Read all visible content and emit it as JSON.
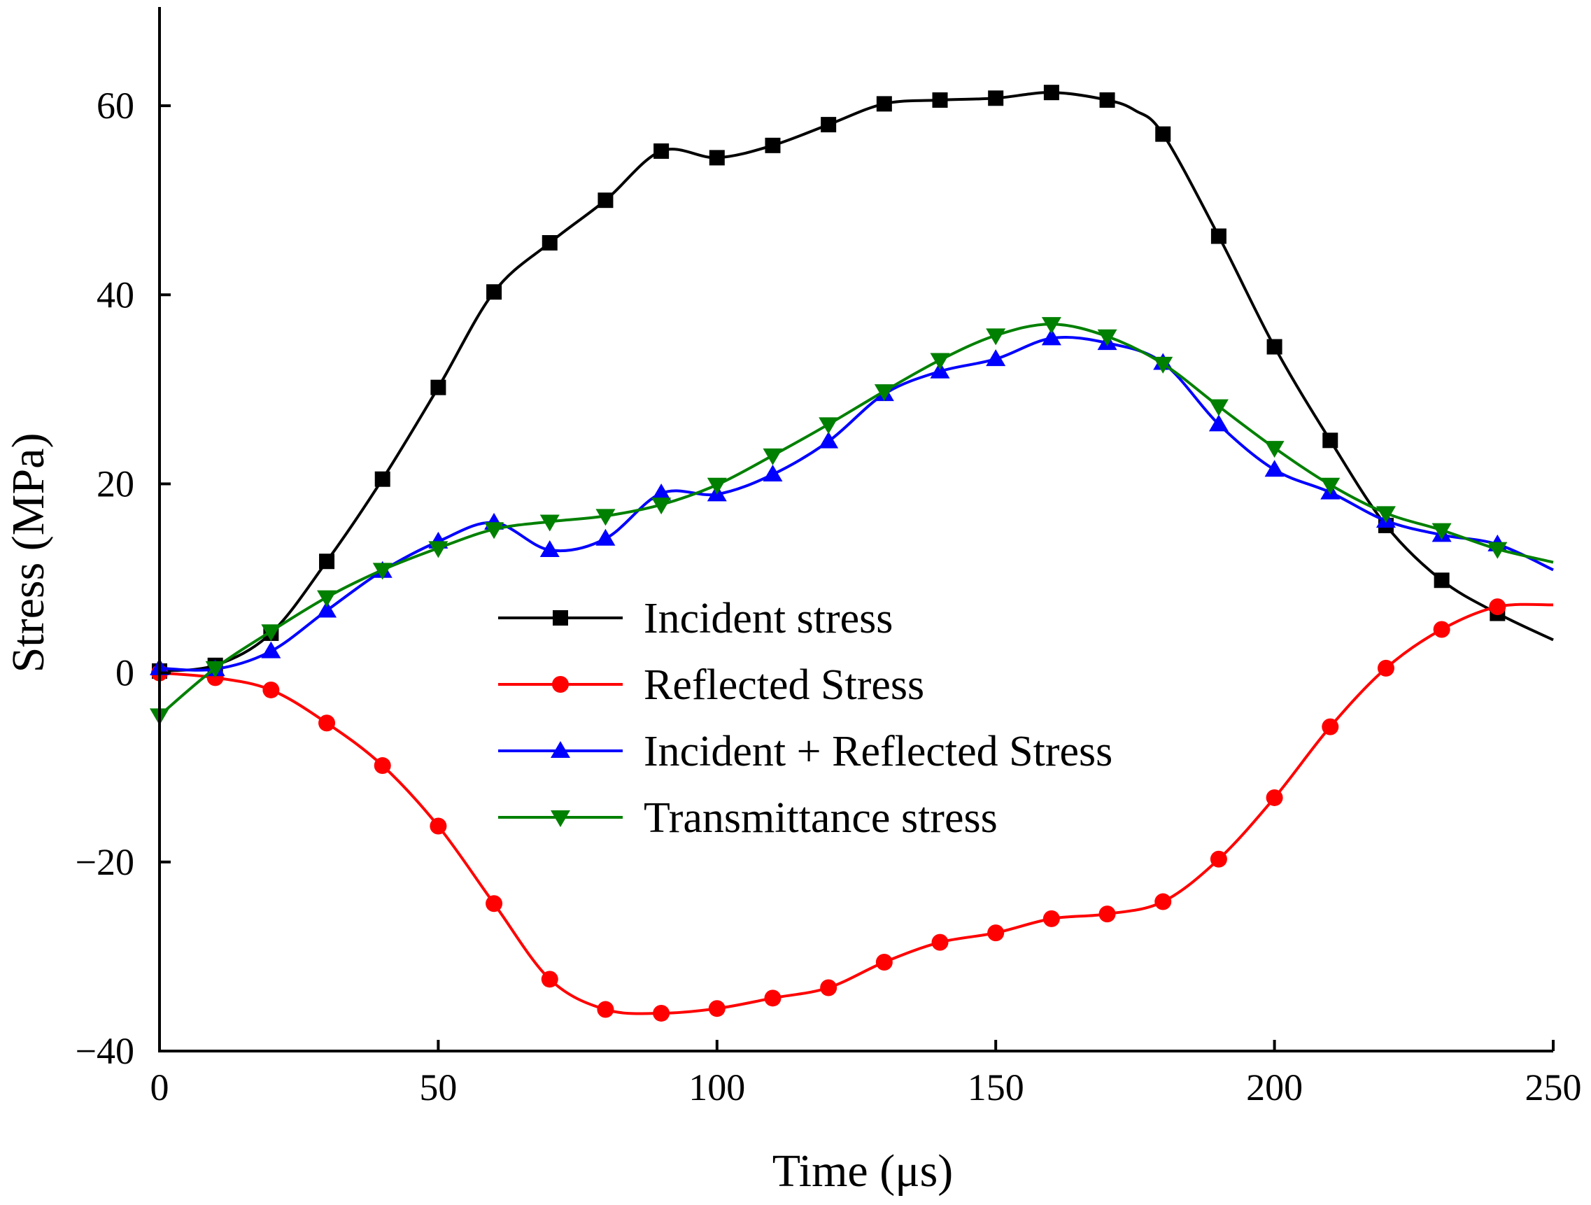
{
  "chart_data": {
    "type": "line",
    "title": "",
    "xlabel": "Time (μs)",
    "ylabel": "Stress (MPa)",
    "xlim": [
      0,
      250
    ],
    "ylim": [
      -40,
      70
    ],
    "xticks": [
      0,
      50,
      100,
      150,
      200,
      250
    ],
    "yticks": [
      -40,
      -20,
      0,
      20,
      40,
      60
    ],
    "xtick_labels": [
      "0",
      "50",
      "100",
      "150",
      "200",
      "250"
    ],
    "ytick_labels": [
      "−40",
      "−20",
      "0",
      "20",
      "40",
      "60"
    ],
    "grid": false,
    "legend_position": "center",
    "series": [
      {
        "name": "Incident stress",
        "color": "#000000",
        "marker": "square",
        "x": [
          0,
          10,
          20,
          30,
          40,
          50,
          60,
          70,
          80,
          90,
          100,
          110,
          120,
          130,
          140,
          150,
          160,
          170,
          175,
          180,
          190,
          200,
          210,
          220,
          230,
          240,
          250
        ],
        "y": [
          0.2,
          0.8,
          4.2,
          11.8,
          20.5,
          30.2,
          40.3,
          45.5,
          50.0,
          55.2,
          54.5,
          55.8,
          58.0,
          60.2,
          60.6,
          60.8,
          61.4,
          60.6,
          59.5,
          57.0,
          46.2,
          34.5,
          24.6,
          15.6,
          9.8,
          6.3,
          3.5
        ],
        "marker_x": [
          0,
          10,
          20,
          30,
          40,
          50,
          60,
          70,
          80,
          90,
          100,
          110,
          120,
          130,
          140,
          150,
          160,
          170,
          180,
          190,
          200,
          210,
          220,
          230,
          240
        ],
        "marker_y": [
          0.2,
          0.8,
          4.2,
          11.8,
          20.5,
          30.2,
          40.3,
          45.5,
          50.0,
          55.2,
          54.5,
          55.8,
          58.0,
          60.2,
          60.6,
          60.8,
          61.4,
          60.6,
          57.0,
          46.2,
          34.5,
          24.6,
          15.6,
          9.8,
          6.3
        ]
      },
      {
        "name": "Reflected Stress",
        "color": "#ff0000",
        "marker": "circle",
        "x": [
          0,
          10,
          20,
          30,
          40,
          50,
          60,
          70,
          80,
          90,
          100,
          110,
          120,
          130,
          140,
          150,
          160,
          170,
          180,
          190,
          200,
          210,
          220,
          230,
          240,
          250
        ],
        "y": [
          0.0,
          -0.5,
          -1.8,
          -5.3,
          -9.8,
          -16.2,
          -24.4,
          -32.4,
          -35.6,
          -36.0,
          -35.5,
          -34.4,
          -33.3,
          -30.6,
          -28.5,
          -27.5,
          -26.0,
          -25.5,
          -24.2,
          -19.7,
          -13.2,
          -5.7,
          0.5,
          4.6,
          7.0,
          7.2
        ],
        "marker_x": [
          0,
          10,
          20,
          30,
          40,
          50,
          60,
          70,
          80,
          90,
          100,
          110,
          120,
          130,
          140,
          150,
          160,
          170,
          180,
          190,
          200,
          210,
          220,
          230,
          240
        ],
        "marker_y": [
          0.0,
          -0.5,
          -1.8,
          -5.3,
          -9.8,
          -16.2,
          -24.4,
          -32.4,
          -35.6,
          -36.0,
          -35.5,
          -34.4,
          -33.3,
          -30.6,
          -28.5,
          -27.5,
          -26.0,
          -25.5,
          -24.2,
          -19.7,
          -13.2,
          -5.7,
          0.5,
          4.6,
          7.0
        ]
      },
      {
        "name": "Incident + Reflected Stress",
        "color": "#0000ff",
        "marker": "triangle-up",
        "x": [
          0,
          10,
          20,
          30,
          40,
          50,
          60,
          70,
          80,
          90,
          100,
          110,
          120,
          130,
          140,
          150,
          160,
          170,
          180,
          190,
          200,
          210,
          220,
          230,
          240,
          250
        ],
        "y": [
          0.5,
          0.4,
          2.3,
          6.6,
          10.8,
          13.9,
          15.9,
          13.0,
          14.2,
          19.0,
          18.9,
          21.0,
          24.5,
          29.5,
          31.9,
          33.2,
          35.4,
          34.9,
          32.8,
          26.3,
          21.5,
          19.1,
          16.1,
          14.6,
          13.6,
          10.9
        ],
        "marker_x": [
          0,
          10,
          20,
          30,
          40,
          50,
          60,
          70,
          80,
          90,
          100,
          110,
          120,
          130,
          140,
          150,
          160,
          170,
          180,
          190,
          200,
          210,
          220,
          230,
          240
        ],
        "marker_y": [
          0.5,
          0.4,
          2.3,
          6.6,
          10.8,
          13.9,
          15.9,
          13.0,
          14.2,
          19.0,
          18.9,
          21.0,
          24.5,
          29.5,
          31.9,
          33.2,
          35.4,
          34.9,
          32.8,
          26.3,
          21.5,
          19.1,
          16.1,
          14.6,
          13.6
        ]
      },
      {
        "name": "Transmittance stress",
        "color": "#008000",
        "marker": "triangle-down",
        "x": [
          0,
          10,
          20,
          30,
          40,
          50,
          60,
          70,
          80,
          90,
          100,
          110,
          120,
          130,
          140,
          150,
          160,
          170,
          180,
          190,
          200,
          210,
          220,
          230,
          240,
          250
        ],
        "y": [
          -4.5,
          0.5,
          4.4,
          8.0,
          10.9,
          13.2,
          15.2,
          16.0,
          16.6,
          17.8,
          19.9,
          23.0,
          26.3,
          29.8,
          33.1,
          35.7,
          36.9,
          35.6,
          32.7,
          28.2,
          23.8,
          19.9,
          16.9,
          15.1,
          13.1,
          11.7
        ],
        "marker_x": [
          0,
          10,
          20,
          30,
          40,
          50,
          60,
          70,
          80,
          90,
          100,
          110,
          120,
          130,
          140,
          150,
          160,
          170,
          180,
          190,
          200,
          210,
          220,
          230,
          240
        ],
        "marker_y": [
          -4.5,
          0.5,
          4.4,
          8.0,
          10.9,
          13.2,
          15.2,
          16.0,
          16.6,
          17.8,
          19.9,
          23.0,
          26.3,
          29.8,
          33.1,
          35.7,
          36.9,
          35.6,
          32.7,
          28.2,
          23.8,
          19.9,
          16.9,
          15.1,
          13.1
        ]
      }
    ]
  }
}
